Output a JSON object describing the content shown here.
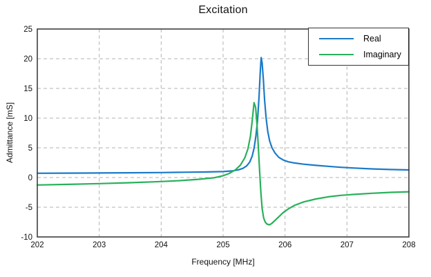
{
  "title": "Excitation",
  "axes": {
    "xlabel": "Frequency [MHz]",
    "ylabel": "Admittance [mS]"
  },
  "legend": {
    "position": "top-right",
    "entries": [
      {
        "label": "Real",
        "color": "#1a7ac8"
      },
      {
        "label": "Imaginary",
        "color": "#28b05a"
      }
    ]
  },
  "colors": {
    "real_line": "#1a7ac8",
    "imaginary_line": "#28b05a",
    "grid": "#b3b3b3",
    "frame": "#3d3d3d",
    "background": "#ffffff",
    "text": "#111111"
  },
  "chart_data": {
    "type": "line",
    "title": "Excitation",
    "xlabel": "Frequency [MHz]",
    "ylabel": "Admittance [mS]",
    "xlim": [
      202,
      208
    ],
    "ylim": [
      -10,
      25
    ],
    "xticks": [
      202,
      203,
      204,
      205,
      206,
      207,
      208
    ],
    "yticks": [
      -10,
      -5,
      0,
      5,
      10,
      15,
      20,
      25
    ],
    "grid": true,
    "grid_style": "dashed",
    "legend_position": "top-right",
    "series": [
      {
        "name": "Real",
        "color": "#1a7ac8",
        "x": [
          202.0,
          202.5,
          203.0,
          203.5,
          204.0,
          204.4,
          204.7,
          205.0,
          205.15,
          205.25,
          205.32,
          205.38,
          205.43,
          205.47,
          205.5,
          205.53,
          205.555,
          205.58,
          205.6,
          205.615,
          205.63,
          205.65,
          205.67,
          205.695,
          205.72,
          205.75,
          205.79,
          205.84,
          205.9,
          205.97,
          206.05,
          206.15,
          206.3,
          206.5,
          206.7,
          206.9,
          207.1,
          207.4,
          207.7,
          208.0
        ],
        "y": [
          0.72,
          0.74,
          0.77,
          0.8,
          0.84,
          0.89,
          0.93,
          1.0,
          1.12,
          1.3,
          1.55,
          1.95,
          2.6,
          3.6,
          4.9,
          7.0,
          9.5,
          13.5,
          17.8,
          20.2,
          19.3,
          16.5,
          13.0,
          10.0,
          7.8,
          6.2,
          5.0,
          4.1,
          3.4,
          2.95,
          2.65,
          2.45,
          2.25,
          2.05,
          1.88,
          1.72,
          1.6,
          1.45,
          1.35,
          1.28
        ],
        "peak": {
          "x": 205.62,
          "y": 20.2
        }
      },
      {
        "name": "Imaginary",
        "color": "#28b05a",
        "x": [
          202.0,
          202.5,
          203.0,
          203.5,
          204.0,
          204.3,
          204.6,
          204.85,
          205.0,
          205.1,
          205.2,
          205.28,
          205.35,
          205.4,
          205.44,
          205.47,
          205.5,
          205.525,
          205.55,
          205.57,
          205.59,
          205.61,
          205.63,
          205.655,
          205.68,
          205.71,
          205.75,
          205.79,
          205.84,
          205.9,
          205.97,
          206.05,
          206.15,
          206.3,
          206.5,
          206.7,
          206.9,
          207.1,
          207.4,
          207.7,
          208.0
        ],
        "y": [
          -1.25,
          -1.15,
          -1.02,
          -0.87,
          -0.68,
          -0.52,
          -0.3,
          -0.05,
          0.3,
          0.7,
          1.3,
          2.1,
          3.3,
          4.8,
          6.9,
          9.5,
          12.6,
          11.8,
          8.5,
          5.0,
          1.0,
          -2.5,
          -5.2,
          -6.8,
          -7.5,
          -7.85,
          -7.95,
          -7.7,
          -7.2,
          -6.6,
          -5.9,
          -5.3,
          -4.7,
          -4.1,
          -3.6,
          -3.25,
          -3.0,
          -2.85,
          -2.65,
          -2.5,
          -2.4
        ],
        "peak": {
          "x": 205.5,
          "y": 12.6
        },
        "trough": {
          "x": 205.75,
          "y": -7.95
        }
      }
    ]
  }
}
